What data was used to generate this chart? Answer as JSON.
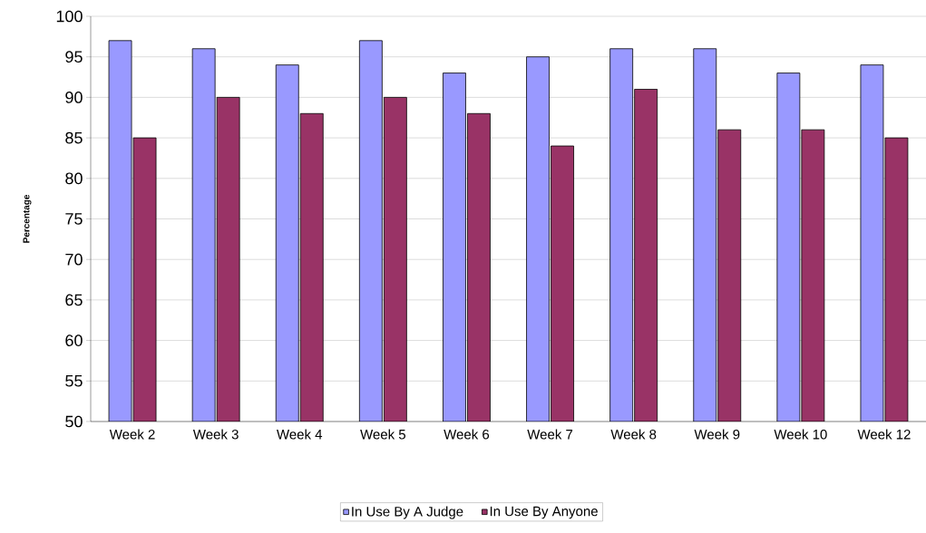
{
  "chart_data": {
    "type": "bar",
    "ylabel": "Percentage",
    "categories": [
      "Week 2",
      "Week 3",
      "Week 4",
      "Week 5",
      "Week 6",
      "Week 7",
      "Week 8",
      "Week 9",
      "Week 10",
      "Week 12"
    ],
    "series": [
      {
        "name": "In Use By A Judge",
        "color": "#9999ff",
        "values": [
          97,
          96,
          94,
          97,
          93,
          95,
          96,
          96,
          93,
          94
        ]
      },
      {
        "name": "In Use By Anyone",
        "color": "#993366",
        "values": [
          85,
          90,
          88,
          90,
          88,
          84,
          91,
          86,
          86,
          85
        ]
      }
    ],
    "ylim": [
      50,
      100
    ],
    "yticks": [
      50,
      55,
      60,
      65,
      70,
      75,
      80,
      85,
      90,
      95,
      100
    ],
    "grid": "y",
    "legend": "bottom"
  }
}
